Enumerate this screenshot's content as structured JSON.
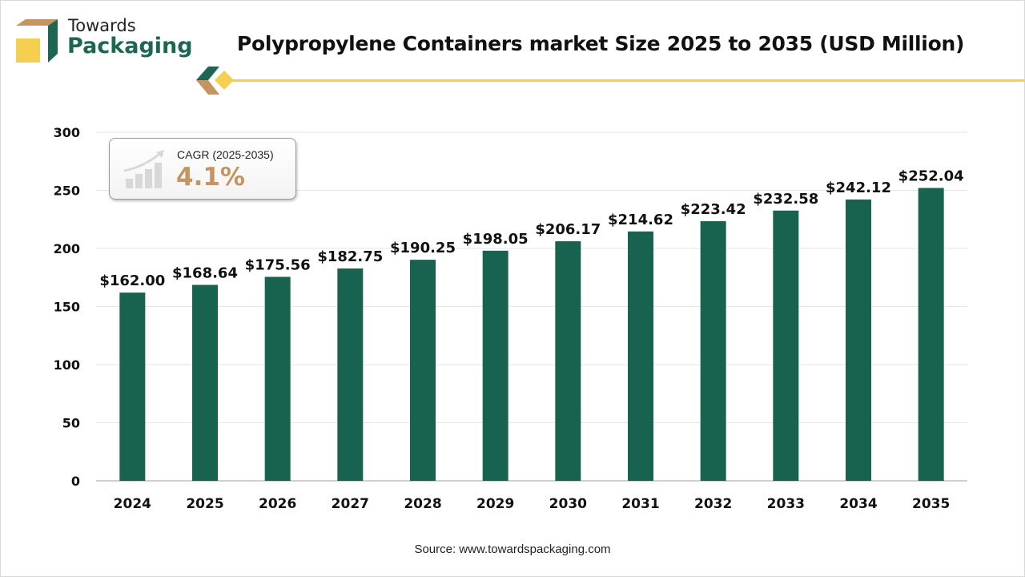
{
  "logo": {
    "line1": "Towards",
    "line2": "Packaging"
  },
  "colors": {
    "bar": "#18634f",
    "accent_yellow": "#f5cf4f",
    "accent_tan": "#c49560",
    "grid": "#e6e6e6"
  },
  "cagr": {
    "label": "CAGR (2025-2035)",
    "value": "4.1%",
    "icon": "growth-chart-icon"
  },
  "source": "Source: www.towardspackaging.com",
  "chart_data": {
    "type": "bar",
    "title": "Polypropylene Containers market Size 2025 to 2035 (USD Million)",
    "xlabel": "",
    "ylabel": "",
    "ylim": [
      0,
      300
    ],
    "yticks": [
      0,
      50,
      100,
      150,
      200,
      250,
      300
    ],
    "grid": true,
    "categories": [
      "2024",
      "2025",
      "2026",
      "2027",
      "2028",
      "2029",
      "2030",
      "2031",
      "2032",
      "2033",
      "2034",
      "2035"
    ],
    "values": [
      162.0,
      168.64,
      175.56,
      182.75,
      190.25,
      198.05,
      206.17,
      214.62,
      223.42,
      232.58,
      242.12,
      252.04
    ],
    "data_labels": [
      "$162.00",
      "$168.64",
      "$175.56",
      "$182.75",
      "$190.25",
      "$198.05",
      "$206.17",
      "$214.62",
      "$223.42",
      "$232.58",
      "$242.12",
      "$252.04"
    ]
  }
}
